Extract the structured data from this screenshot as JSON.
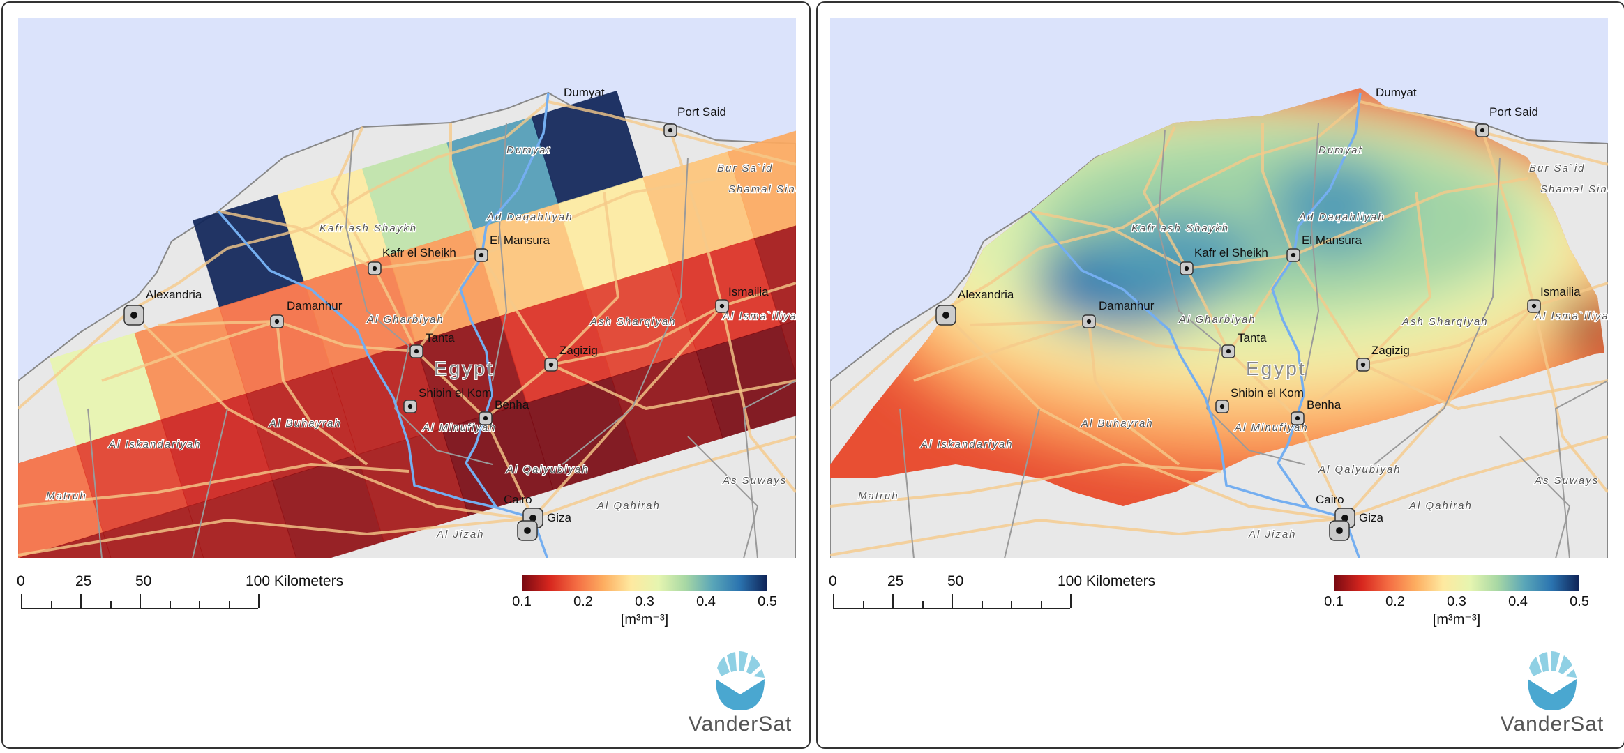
{
  "map": {
    "country_label": "Egypt",
    "cities": [
      "Alexandria",
      "Damanhur",
      "Kafr el Sheikh",
      "El Mansura",
      "Dumyat",
      "Port Said",
      "Ismailia",
      "Tanta",
      "Zagizig",
      "Shibin el Kom",
      "Benha",
      "Cairo",
      "Giza"
    ],
    "regions": [
      "Kafr ash Shaykh",
      "Ad Daqahliyah",
      "Dumyat",
      "Bur Sa`id",
      "Shamal Sina'",
      "Al Gharbiyah",
      "Ash Sharqiyah",
      "Al Isma`iliyah",
      "Al Buhayrah",
      "Al Minufiyah",
      "Al Iskandariyah",
      "Al Qalyubiyah",
      "As Suways",
      "Matruh",
      "Al Qahirah",
      "Al Jizah"
    ]
  },
  "scale_bar": {
    "labels": [
      "0",
      "25",
      "50",
      "100 Kilometers"
    ]
  },
  "colorbar": {
    "ticks": [
      "0.1",
      "0.2",
      "0.3",
      "0.4",
      "0.5"
    ],
    "range": [
      0.1,
      0.5
    ],
    "unit": "[m³m⁻³]",
    "stops": [
      "#7a0a12",
      "#d7261e",
      "#f46d43",
      "#fdae61",
      "#fee9a0",
      "#e6f5b0",
      "#a8d8a4",
      "#5aa6b8",
      "#2b74b0",
      "#0f2458"
    ]
  },
  "colors": {
    "sea": "#dbe3fb",
    "land": "#e8e8e8",
    "road": "#f5c98a",
    "river": "#74aef0",
    "boundary": "#9a9a9a"
  },
  "logo_text": "VanderSat",
  "panels": [
    {
      "name": "coarse-resolution",
      "type": "tiled"
    },
    {
      "name": "high-resolution",
      "type": "smooth"
    }
  ],
  "coarse_tiles_soil_moisture": [
    [
      null,
      null,
      null,
      0.5,
      0.28,
      0.35,
      0.42,
      0.5,
      null,
      null
    ],
    [
      null,
      0.32,
      0.21,
      0.19,
      0.2,
      0.22,
      0.25,
      0.28,
      0.25,
      0.23
    ],
    [
      0.19,
      0.16,
      0.14,
      0.13,
      0.13,
      0.11,
      0.15,
      0.16,
      0.15,
      0.12
    ],
    [
      0.12,
      0.12,
      0.12,
      0.11,
      0.12,
      0.1,
      0.1,
      0.11,
      0.1,
      0.11
    ]
  ]
}
